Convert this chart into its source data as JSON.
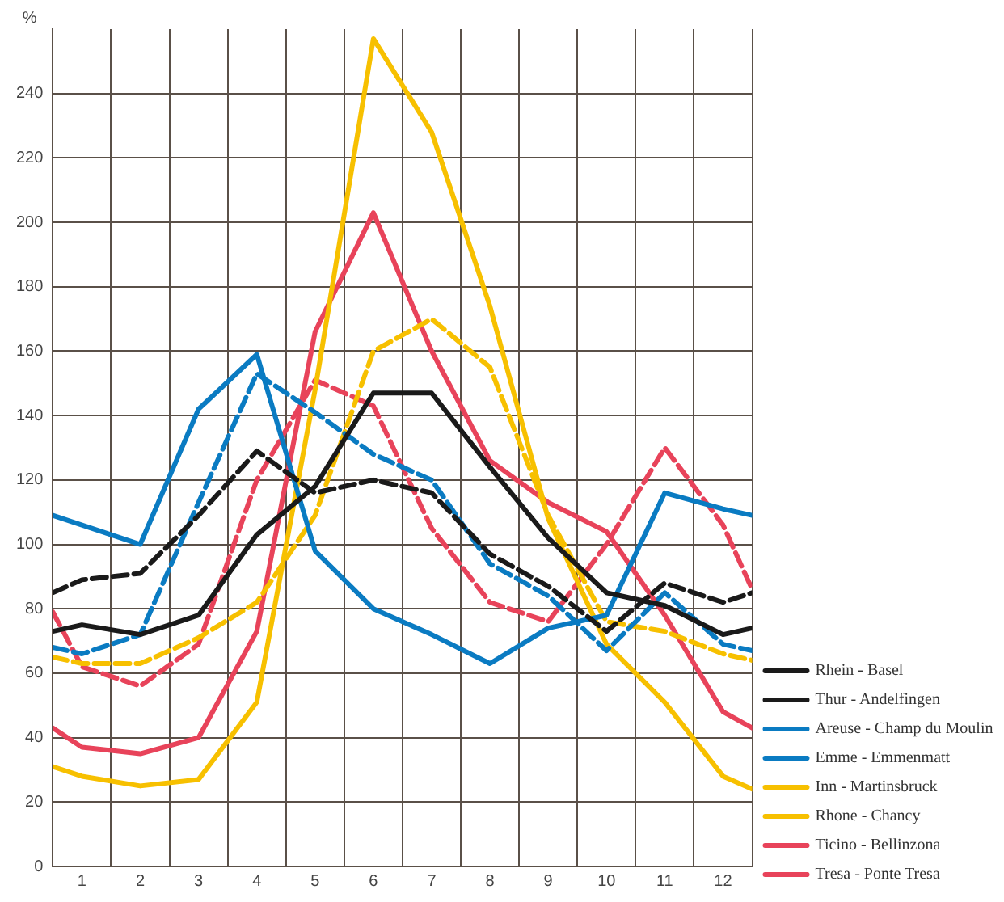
{
  "chart_data": {
    "type": "line",
    "ylabel": "%",
    "x": [
      0.5,
      1,
      2,
      3,
      4,
      5,
      6,
      7,
      8,
      9,
      10,
      11,
      12,
      12.5
    ],
    "xlim": [
      0.5,
      12.5
    ],
    "xticks": [
      {
        "value": 0.5,
        "label": null
      },
      1,
      {
        "value": 1.5,
        "label": null
      },
      2,
      {
        "value": 2.5,
        "label": null
      },
      3,
      {
        "value": 3.5,
        "label": null
      },
      4,
      {
        "value": 4.5,
        "label": null
      },
      5,
      {
        "value": 5.5,
        "label": null
      },
      6,
      {
        "value": 6.5,
        "label": null
      },
      7,
      {
        "value": 7.5,
        "label": null
      },
      8,
      {
        "value": 8.5,
        "label": null
      },
      9,
      {
        "value": 9.5,
        "label": null
      },
      10,
      {
        "value": 10.5,
        "label": null
      },
      11,
      {
        "value": 11.5,
        "label": null
      },
      12,
      {
        "value": 12.5,
        "label": null
      }
    ],
    "ylim": [
      0,
      260
    ],
    "yticks": [
      0,
      20,
      40,
      60,
      80,
      100,
      120,
      140,
      160,
      180,
      200,
      220,
      240
    ],
    "grid": true,
    "legend": "bottom right",
    "marker": "none",
    "series": [
      {
        "name": "Rhein - Basel",
        "color": "#1a1a1a",
        "line_style": "solid",
        "values": [
          73,
          75,
          72,
          78,
          103,
          118,
          147,
          147,
          124,
          102,
          85,
          81,
          72,
          74
        ]
      },
      {
        "name": "Thur - Andelfingen",
        "color": "#1a1a1a",
        "line_style": "dashed",
        "values": [
          85,
          89,
          91,
          109,
          129,
          116,
          120,
          116,
          97,
          87,
          73,
          88,
          82,
          85
        ]
      },
      {
        "name": "Areuse - Champ du Moulin",
        "color": "#0a7bc2",
        "line_style": "solid",
        "values": [
          109,
          106,
          100,
          142,
          159,
          98,
          80,
          72,
          63,
          74,
          78,
          116,
          111,
          109
        ]
      },
      {
        "name": "Emme - Emmenmatt",
        "color": "#0a7bc2",
        "line_style": "dashed",
        "values": [
          68,
          66,
          72,
          113,
          153,
          141,
          128,
          120,
          94,
          84,
          67,
          85,
          69,
          67
        ]
      },
      {
        "name": "Inn - Martinsbruck",
        "color": "#f7c000",
        "line_style": "solid",
        "values": [
          31,
          28,
          25,
          27,
          51,
          148,
          257,
          228,
          174,
          108,
          69,
          51,
          28,
          24
        ]
      },
      {
        "name": "Rhone - Chancy",
        "color": "#f7c000",
        "line_style": "dashed",
        "values": [
          65,
          63,
          63,
          71,
          82,
          109,
          160,
          170,
          155,
          109,
          76,
          73,
          66,
          64
        ]
      },
      {
        "name": "Ticino - Bellinzona",
        "color": "#e8435a",
        "line_style": "solid",
        "values": [
          43,
          37,
          35,
          40,
          73,
          166,
          203,
          160,
          126,
          113,
          104,
          78,
          48,
          43
        ]
      },
      {
        "name": "Tresa - Ponte Tresa",
        "color": "#e8435a",
        "line_style": "dashed",
        "values": [
          79,
          62,
          56,
          69,
          120,
          151,
          143,
          105,
          82,
          76,
          100,
          130,
          106,
          86
        ]
      }
    ]
  }
}
